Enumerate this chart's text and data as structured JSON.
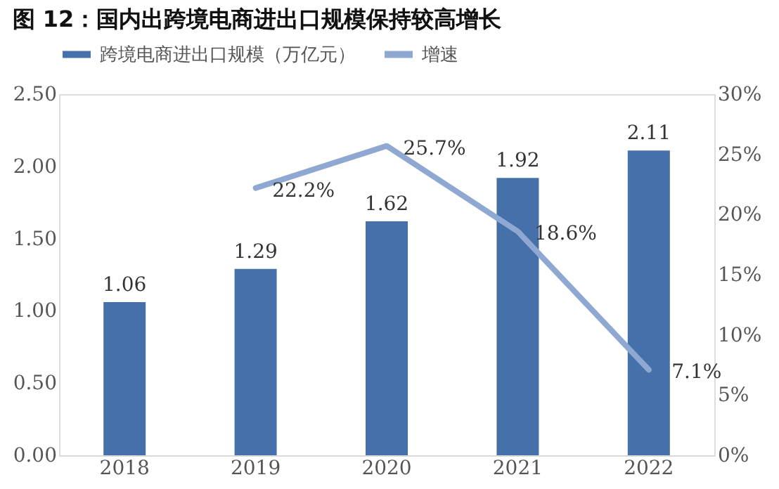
{
  "chart_data": {
    "type": "bar",
    "title": "图 12：国内出跨境电商进出口规模保持较高增长",
    "categories": [
      "2018",
      "2019",
      "2020",
      "2021",
      "2022"
    ],
    "series": [
      {
        "name": "跨境电商进出口规模（万亿元）",
        "color": "#4570aa",
        "values": [
          1.06,
          1.29,
          1.62,
          1.92,
          2.11
        ],
        "value_labels": [
          "1.06",
          "1.29",
          "1.62",
          "1.92",
          "2.11"
        ]
      },
      {
        "name": "增速",
        "type": "line",
        "axis": "y2",
        "color": "#8fa8d2",
        "values": [
          null,
          22.2,
          25.7,
          18.6,
          7.1
        ],
        "value_labels": [
          null,
          "22.2%",
          "25.7%",
          "18.6%",
          "7.1%"
        ]
      }
    ],
    "ylim": [
      0,
      2.5
    ],
    "yticks": [
      {
        "value": 0,
        "label": "0.00"
      },
      {
        "value": 0.5,
        "label": "0.50"
      },
      {
        "value": 1,
        "label": "1.00"
      },
      {
        "value": 1.5,
        "label": "1.50"
      },
      {
        "value": 2,
        "label": "2.00"
      },
      {
        "value": 2.5,
        "label": "2.50"
      }
    ],
    "y2lim": [
      0,
      30
    ],
    "y2ticks": [
      {
        "value": 0,
        "label": "0%"
      },
      {
        "value": 5,
        "label": "5%"
      },
      {
        "value": 10,
        "label": "10%"
      },
      {
        "value": 15,
        "label": "15%"
      },
      {
        "value": 20,
        "label": "20%"
      },
      {
        "value": 25,
        "label": "25%"
      },
      {
        "value": 30,
        "label": "30%"
      }
    ],
    "legend": "top",
    "grid": false
  }
}
